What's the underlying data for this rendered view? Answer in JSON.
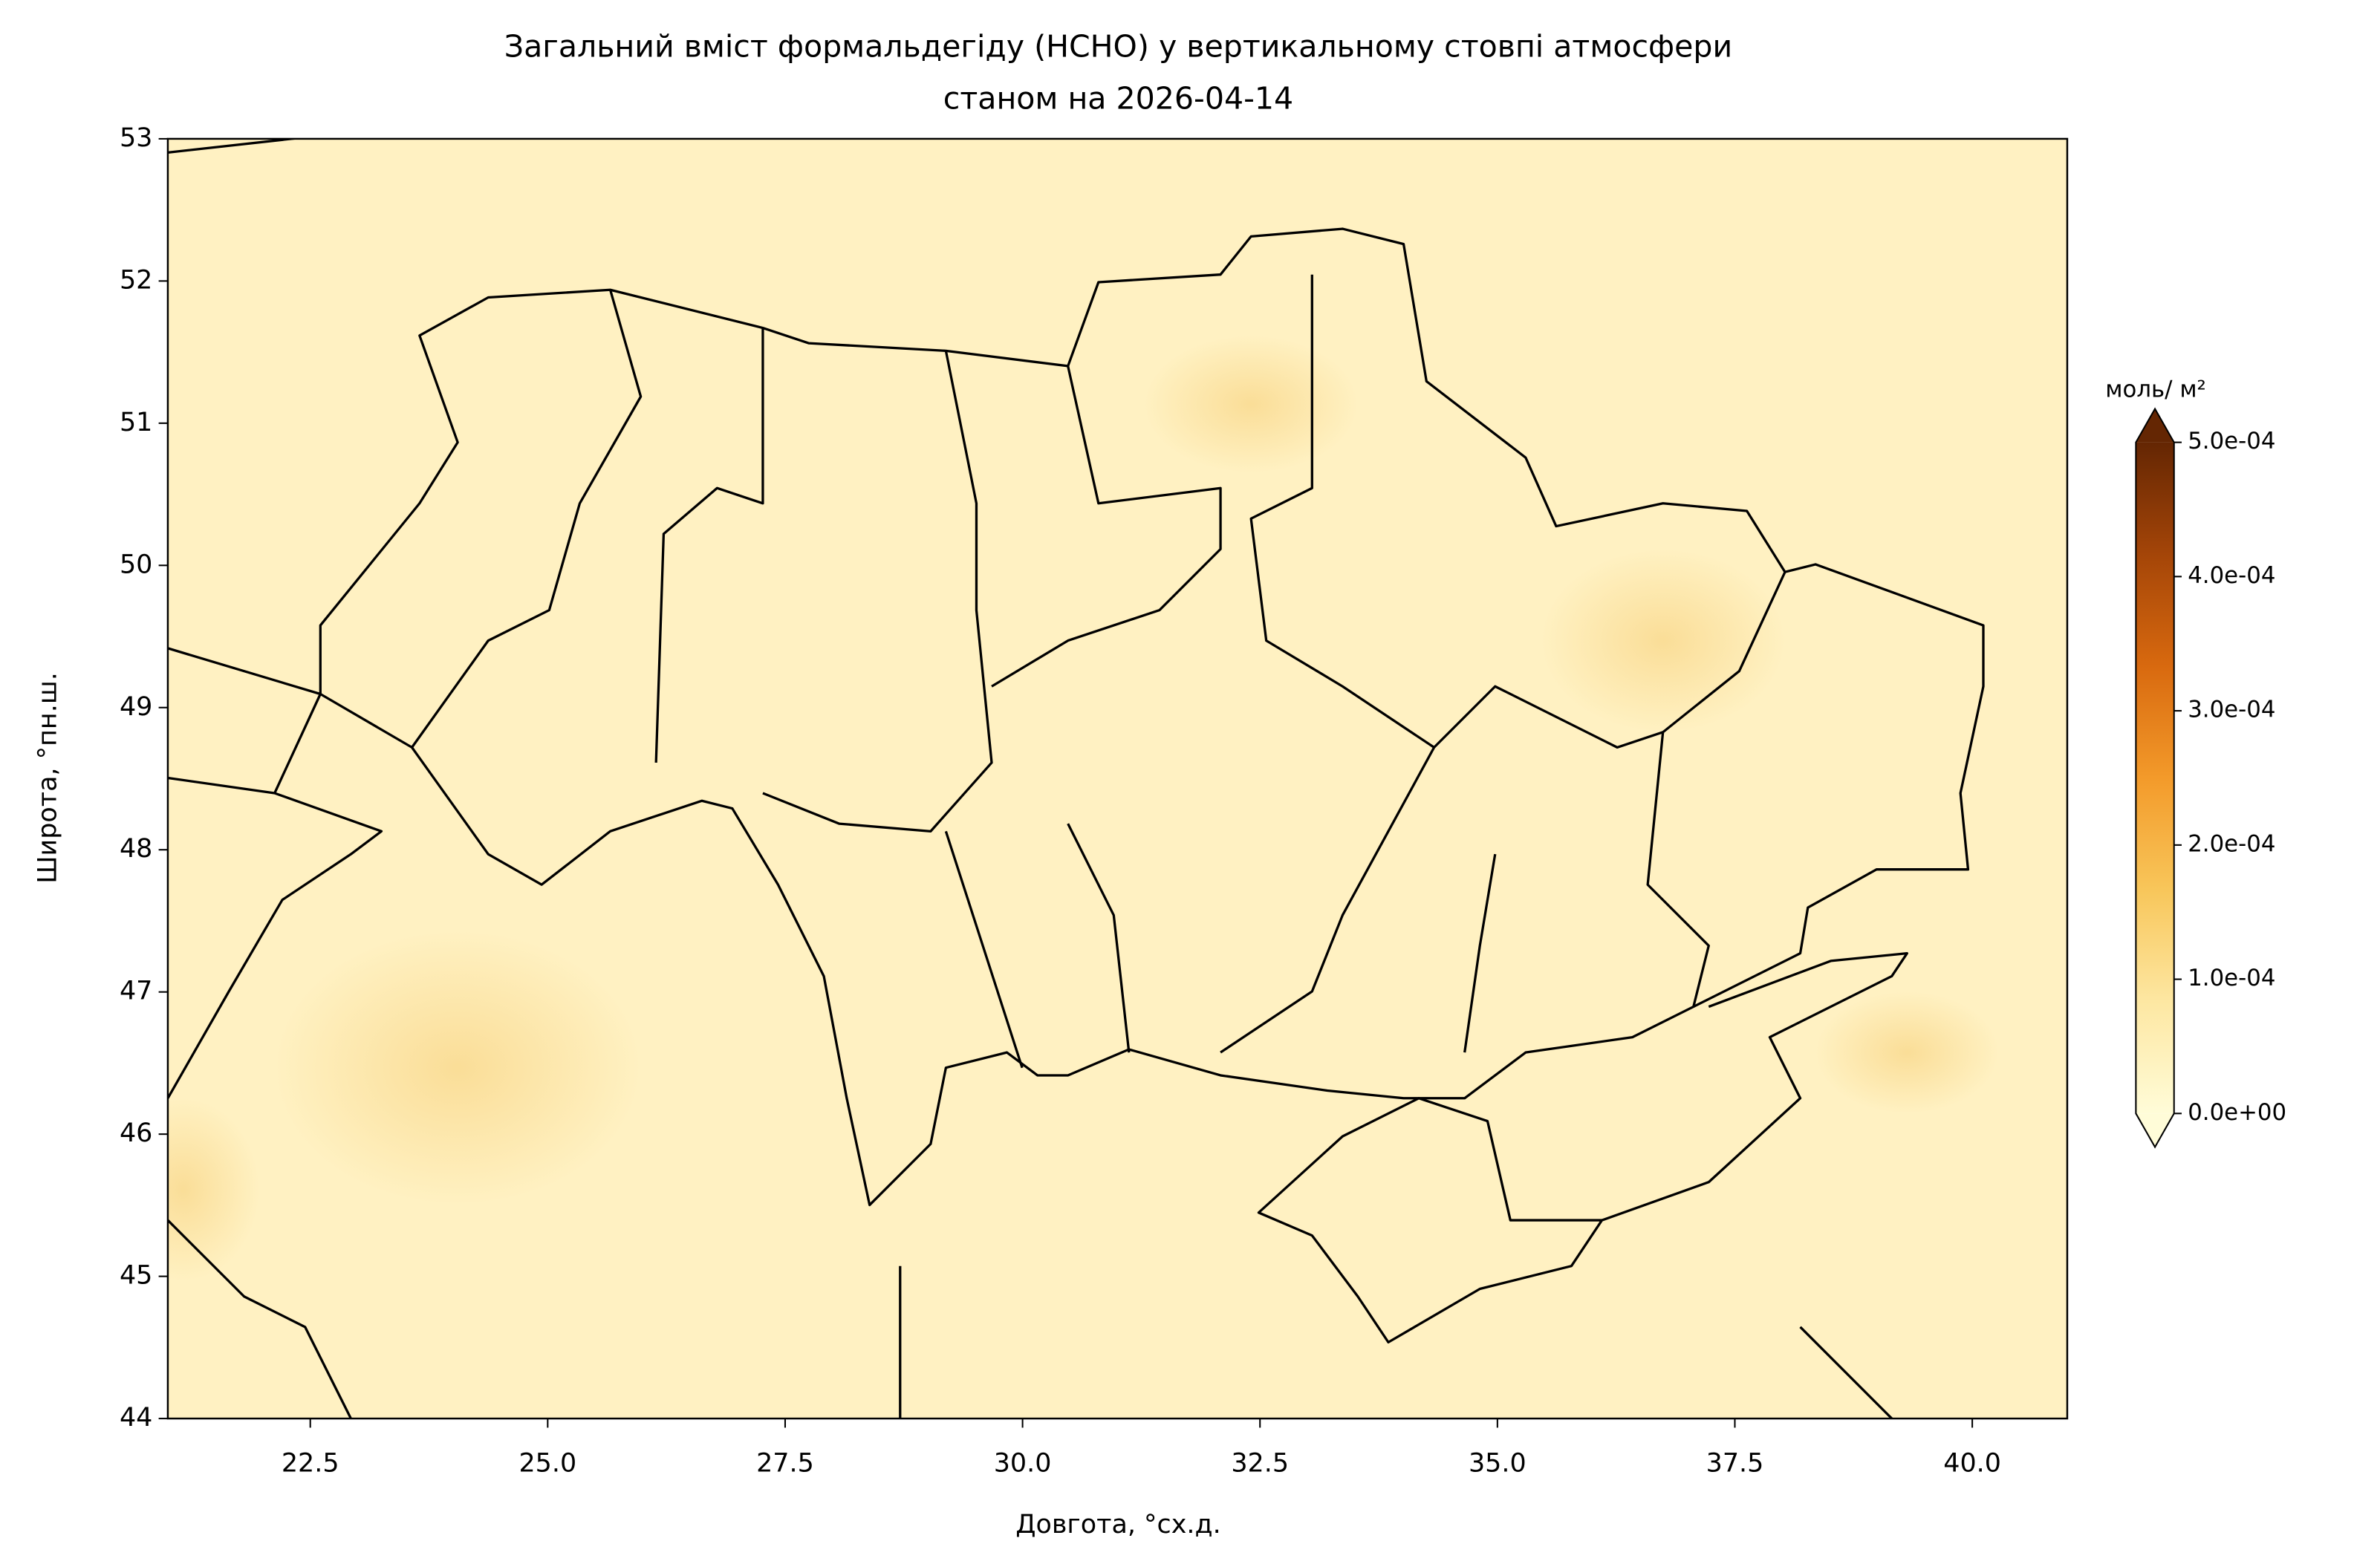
{
  "chart_data": {
    "type": "map",
    "title": "Загальний вміст формальдегіду (HCHO) у вертикальному стовпі атмосфери",
    "subtitle": "станом на 2026-04-14",
    "x_label": "Довгота, °сх.д.",
    "y_label": "Широта, °пн.ш.",
    "xlim": [
      21,
      41
    ],
    "xticks": [
      22.5,
      {
        "value": 25,
        "label": "25.0"
      },
      27.5,
      {
        "value": 30,
        "label": "30.0"
      },
      32.5,
      {
        "value": 35,
        "label": "35.0"
      },
      37.5,
      {
        "value": 40,
        "label": "40.0"
      }
    ],
    "ylim": [
      44,
      53
    ],
    "yticks": [
      44,
      45,
      46,
      47,
      48,
      49,
      50,
      51,
      52,
      53
    ],
    "field_color": "#fff1c2",
    "colorbar": {
      "label": "моль/ м²",
      "lim": [
        0,
        0.0005
      ],
      "ticks": [
        {
          "value": 0,
          "label": "0.0e+00"
        },
        {
          "value": 0.0001,
          "label": "1.0e-04"
        },
        {
          "value": 0.0002,
          "label": "2.0e-04"
        },
        {
          "value": 0.0003,
          "label": "3.0e-04"
        },
        {
          "value": 0.0004,
          "label": "4.0e-04"
        },
        {
          "value": 0.0005,
          "label": "5.0e-04"
        }
      ],
      "colors": [
        "#fffcd8",
        "#fde7a2",
        "#f8c65a",
        "#f39a2a",
        "#d8690f",
        "#a44508",
        "#642603"
      ]
    }
  }
}
